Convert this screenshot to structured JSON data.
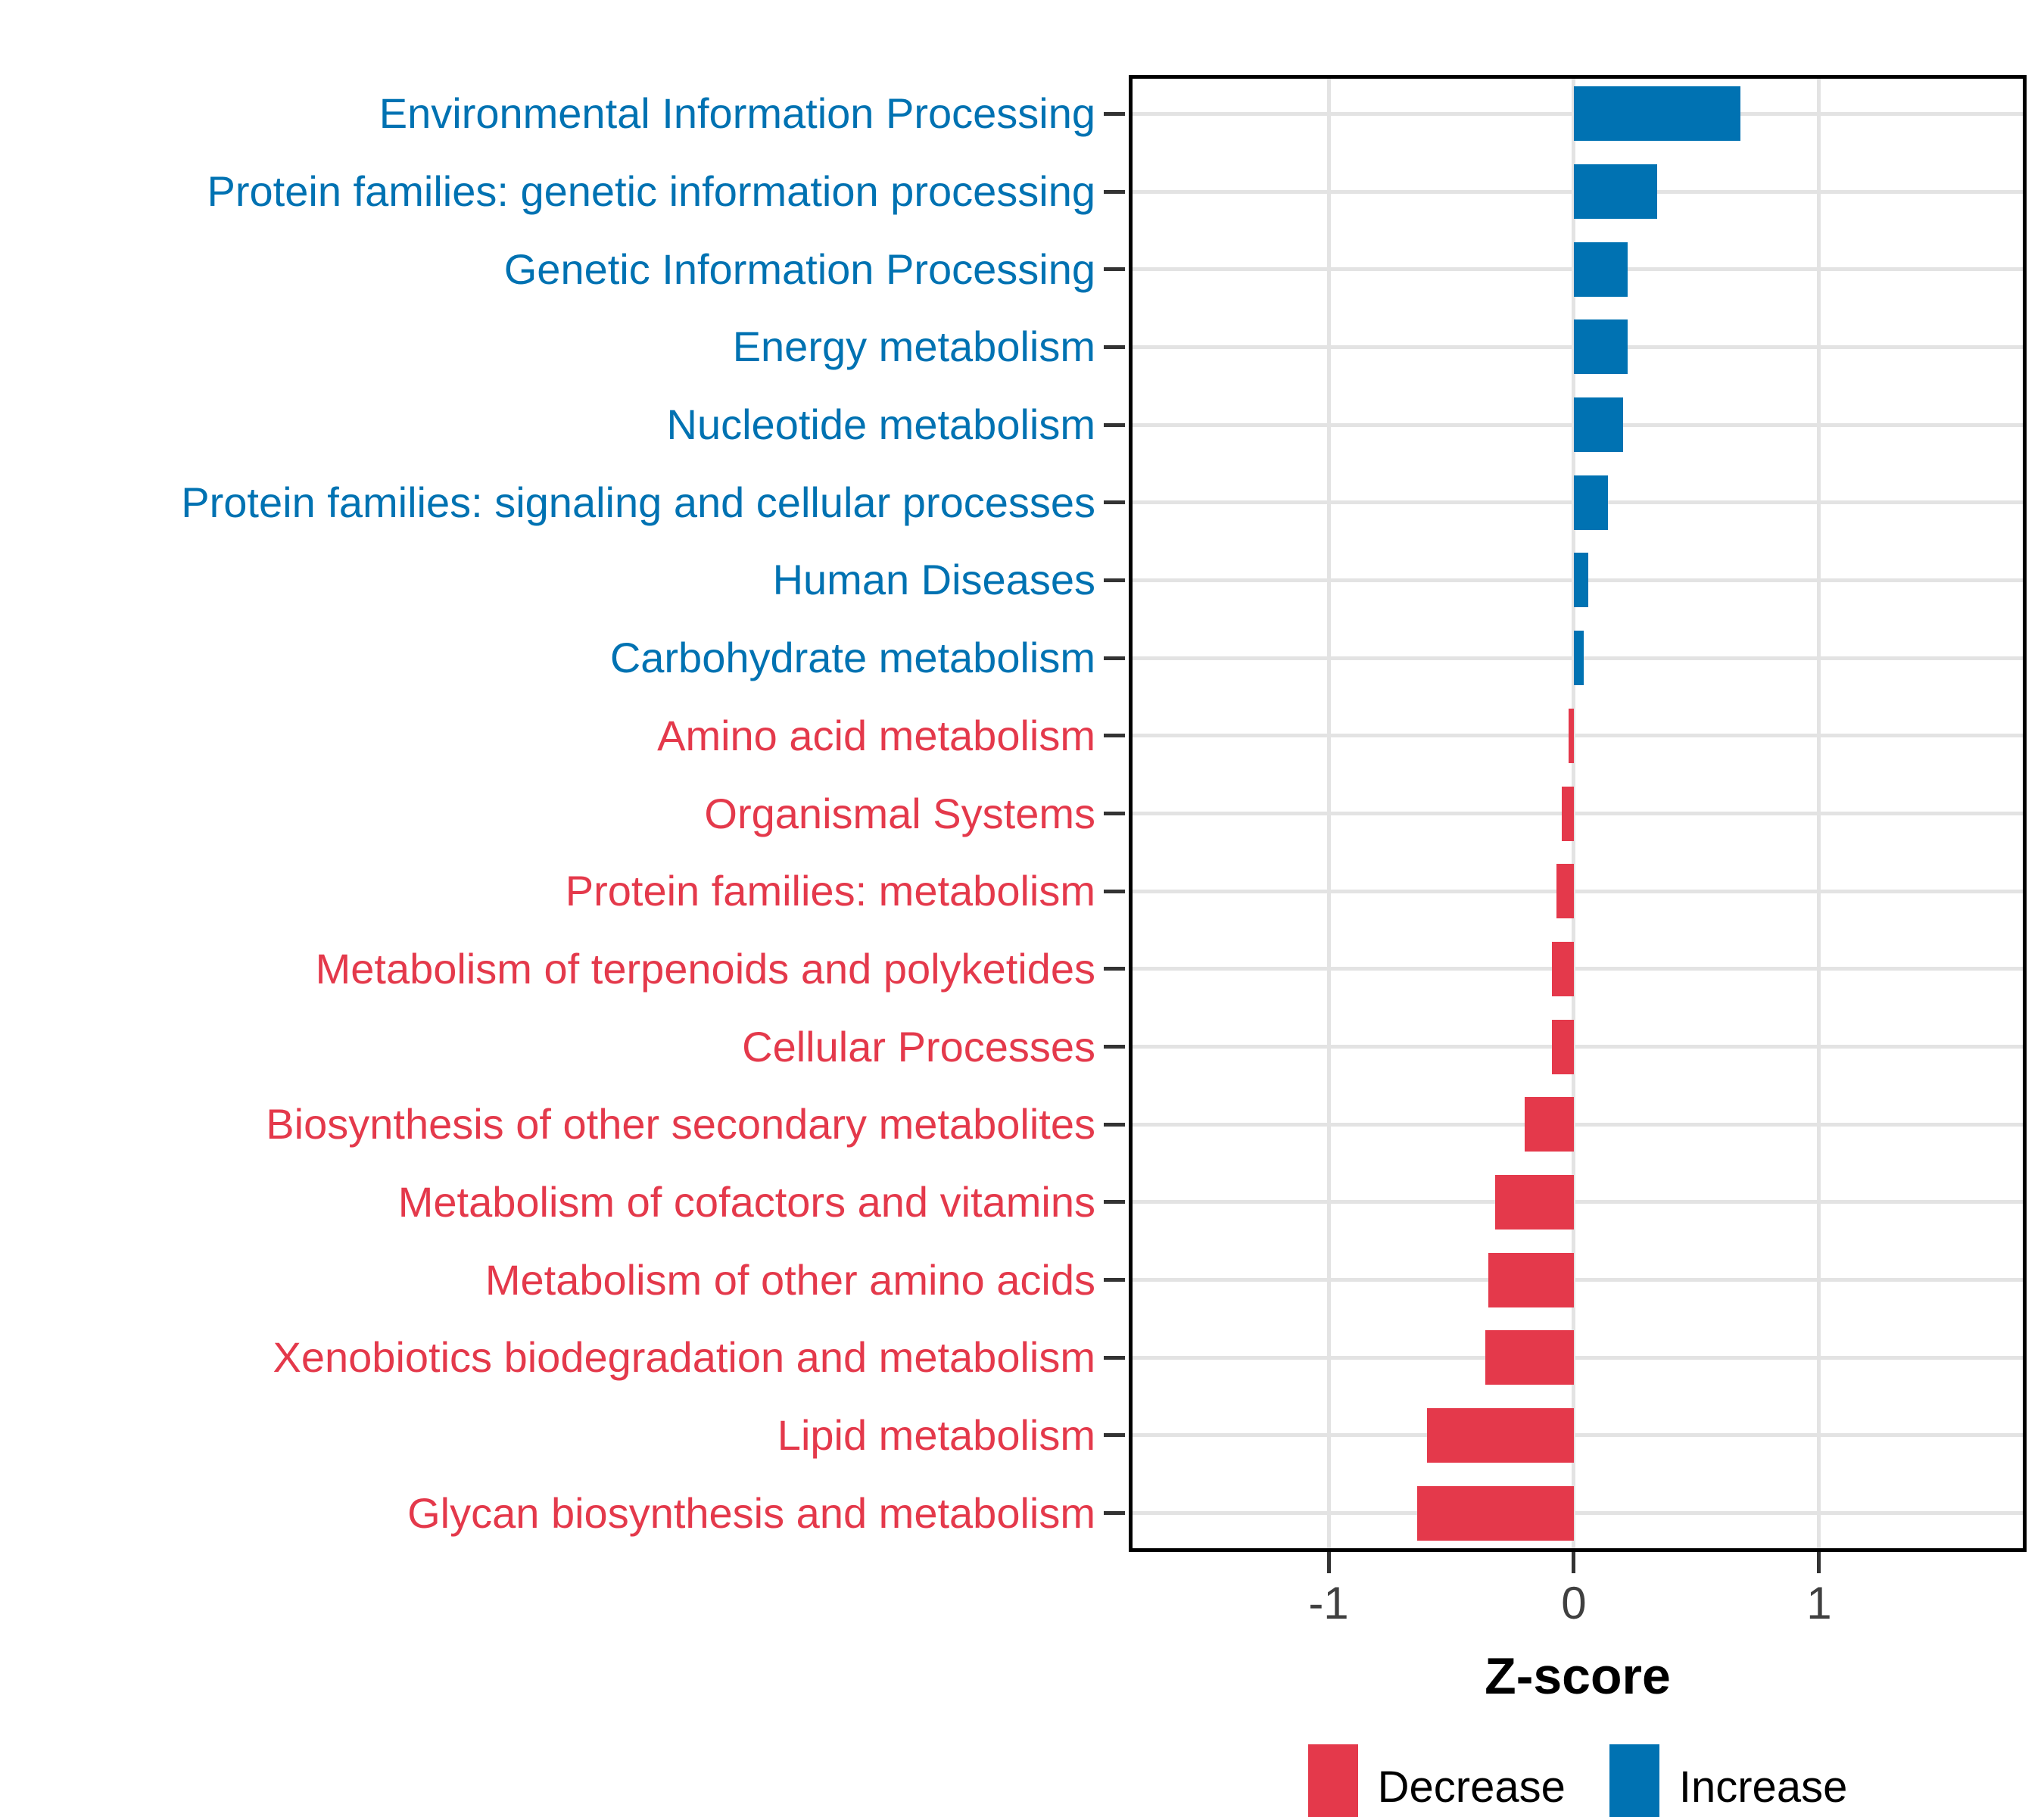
{
  "chart_data": {
    "type": "bar",
    "orientation": "horizontal",
    "title": "",
    "xlabel": "Z-score",
    "ylabel": "",
    "xlim": [
      -1.815,
      1.846
    ],
    "x_ticks": [
      -1,
      0,
      1
    ],
    "x_tick_labels": [
      "-1",
      "0",
      "1"
    ],
    "grid": true,
    "legend_position": "bottom",
    "rows": [
      {
        "label": "Environmental Information Processing",
        "value": 0.68,
        "direction": "increase"
      },
      {
        "label": "Protein families: genetic information processing",
        "value": 0.34,
        "direction": "increase"
      },
      {
        "label": "Genetic Information Processing",
        "value": 0.22,
        "direction": "increase"
      },
      {
        "label": "Energy metabolism",
        "value": 0.22,
        "direction": "increase"
      },
      {
        "label": "Nucleotide metabolism",
        "value": 0.2,
        "direction": "increase"
      },
      {
        "label": "Protein families: signaling and cellular processes",
        "value": 0.14,
        "direction": "increase"
      },
      {
        "label": "Human Diseases",
        "value": 0.06,
        "direction": "increase"
      },
      {
        "label": "Carbohydrate metabolism",
        "value": 0.04,
        "direction": "increase"
      },
      {
        "label": "Amino acid metabolism",
        "value": -0.02,
        "direction": "decrease"
      },
      {
        "label": "Organismal Systems",
        "value": -0.05,
        "direction": "decrease"
      },
      {
        "label": "Protein families: metabolism",
        "value": -0.07,
        "direction": "decrease"
      },
      {
        "label": "Metabolism of terpenoids and polyketides",
        "value": -0.09,
        "direction": "decrease"
      },
      {
        "label": "Cellular Processes",
        "value": -0.09,
        "direction": "decrease"
      },
      {
        "label": "Biosynthesis of other secondary metabolites",
        "value": -0.2,
        "direction": "decrease"
      },
      {
        "label": "Metabolism of cofactors and vitamins",
        "value": -0.32,
        "direction": "decrease"
      },
      {
        "label": "Metabolism of other amino acids",
        "value": -0.35,
        "direction": "decrease"
      },
      {
        "label": "Xenobiotics biodegradation and metabolism",
        "value": -0.36,
        "direction": "decrease"
      },
      {
        "label": "Lipid metabolism",
        "value": -0.6,
        "direction": "decrease"
      },
      {
        "label": "Glycan biosynthesis and metabolism",
        "value": -0.64,
        "direction": "decrease"
      }
    ]
  },
  "legend": {
    "items": [
      {
        "label": "Decrease",
        "key": "decrease",
        "color": "#E4394B"
      },
      {
        "label": "Increase",
        "key": "increase",
        "color": "#0072B2"
      }
    ]
  },
  "colors": {
    "increase": "#0072B2",
    "decrease": "#E4394B",
    "grid": "#E3E3E3",
    "panel_border": "#000000",
    "tick_mark": "#333333",
    "tick_label": "#404040",
    "background": "#ffffff"
  }
}
